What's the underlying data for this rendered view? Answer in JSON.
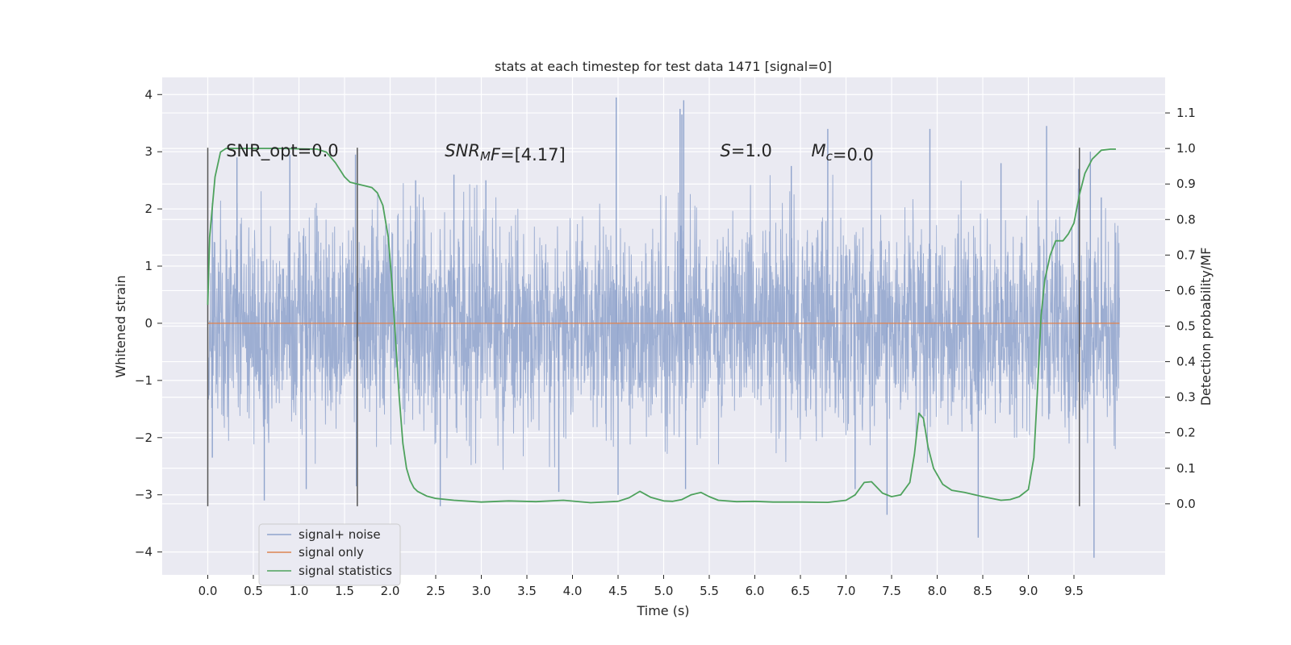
{
  "chart_data": {
    "type": "line",
    "title": "stats at each timestep for test data 1471 [signal=0]",
    "xlabel": "Time (s)",
    "ylabel": "Whitened strain",
    "y2label": "Detection probability/MF",
    "xlim": [
      -0.5,
      10.5
    ],
    "ylim": [
      -4.4,
      4.3
    ],
    "y2lim": [
      -0.2,
      1.2
    ],
    "xticks": [
      "0.0",
      "0.5",
      "1.0",
      "1.5",
      "2.0",
      "2.5",
      "3.0",
      "3.5",
      "4.0",
      "4.5",
      "5.0",
      "5.5",
      "6.0",
      "6.5",
      "7.0",
      "7.5",
      "8.0",
      "8.5",
      "9.0",
      "9.5"
    ],
    "yticks": [
      "4",
      "3",
      "2",
      "1",
      "0",
      "−1",
      "−2",
      "−3",
      "−4"
    ],
    "y2ticks": [
      "1.1",
      "1.0",
      "0.9",
      "0.8",
      "0.7",
      "0.6",
      "0.5",
      "0.4",
      "0.3",
      "0.2",
      "0.1",
      "0.0"
    ],
    "grid": true,
    "legend_position": "lower-left",
    "annotations": [
      {
        "parts": [
          {
            "text": "SNR_opt=0.0",
            "style": "normal"
          }
        ],
        "x": 0.2,
        "y": 3.0
      },
      {
        "parts": [
          {
            "text": "SNR",
            "style": "italic"
          },
          {
            "text": "M",
            "style": "italic-sub"
          },
          {
            "text": "F",
            "style": "italic"
          },
          {
            "text": "=[4.17]",
            "style": "normal"
          }
        ],
        "x": 2.6,
        "y": 3.0
      },
      {
        "parts": [
          {
            "text": "S",
            "style": "italic"
          },
          {
            "text": "=1.0",
            "style": "normal"
          }
        ],
        "x": 5.62,
        "y": 3.0
      },
      {
        "parts": [
          {
            "text": "M",
            "style": "italic"
          },
          {
            "text": "c",
            "style": "italic-sub"
          },
          {
            "text": "=0.0",
            "style": "normal"
          }
        ],
        "x": 6.62,
        "y": 3.0
      }
    ],
    "vlines": [
      0.0,
      1.64,
      9.56
    ],
    "vline_range": [
      -3.2,
      3.07
    ],
    "series": [
      {
        "name": "signal+ noise",
        "color": "#8fa3cc",
        "type": "noise",
        "x_range": [
          0.0,
          10.0
        ],
        "amplitude_y": 1.25,
        "spikes": [
          [
            0.05,
            2.1
          ],
          [
            0.05,
            -2.35
          ],
          [
            0.32,
            2.9
          ],
          [
            0.62,
            -3.1
          ],
          [
            0.9,
            2.95
          ],
          [
            1.08,
            -2.9
          ],
          [
            1.62,
            2.95
          ],
          [
            1.63,
            -2.85
          ],
          [
            2.28,
            2.5
          ],
          [
            2.55,
            -3.2
          ],
          [
            2.7,
            2.6
          ],
          [
            3.05,
            2.5
          ],
          [
            3.85,
            -2.95
          ],
          [
            4.48,
            3.95
          ],
          [
            4.5,
            -3.0
          ],
          [
            5.18,
            3.75
          ],
          [
            5.2,
            3.65
          ],
          [
            5.22,
            3.9
          ],
          [
            5.24,
            -2.9
          ],
          [
            6.4,
            2.75
          ],
          [
            6.8,
            3.4
          ],
          [
            7.1,
            -2.9
          ],
          [
            7.28,
            2.95
          ],
          [
            7.45,
            -3.35
          ],
          [
            7.92,
            3.4
          ],
          [
            8.45,
            -3.75
          ],
          [
            8.7,
            2.8
          ],
          [
            9.2,
            3.45
          ],
          [
            9.55,
            2.7
          ],
          [
            9.68,
            3.0
          ],
          [
            9.72,
            -4.1
          ],
          [
            9.8,
            2.2
          ]
        ]
      },
      {
        "name": "signal only",
        "color": "#dd8452",
        "type": "constant",
        "x_range": [
          0.0,
          10.0
        ],
        "y": 0.0
      },
      {
        "name": "signal statistics",
        "color": "#4ea25d",
        "axis": "right",
        "x": [
          0.0,
          0.02,
          0.08,
          0.14,
          0.2,
          0.3,
          0.5,
          0.8,
          1.0,
          1.2,
          1.3,
          1.4,
          1.5,
          1.56,
          1.64,
          1.72,
          1.8,
          1.86,
          1.92,
          1.98,
          2.02,
          2.06,
          2.1,
          2.14,
          2.18,
          2.22,
          2.26,
          2.3,
          2.4,
          2.5,
          2.7,
          3.0,
          3.3,
          3.6,
          3.9,
          4.2,
          4.5,
          4.62,
          4.74,
          4.86,
          5.0,
          5.1,
          5.2,
          5.3,
          5.41,
          5.5,
          5.6,
          5.8,
          6.0,
          6.2,
          6.5,
          6.8,
          7.0,
          7.1,
          7.2,
          7.28,
          7.4,
          7.5,
          7.6,
          7.7,
          7.75,
          7.8,
          7.85,
          7.9,
          7.96,
          8.06,
          8.16,
          8.3,
          8.5,
          8.7,
          8.8,
          8.9,
          9.0,
          9.06,
          9.1,
          9.14,
          9.18,
          9.24,
          9.3,
          9.38,
          9.44,
          9.5,
          9.56,
          9.62,
          9.7,
          9.8,
          9.9,
          9.96
        ],
        "values": [
          0.56,
          0.75,
          0.92,
          0.99,
          1.0,
          1.0,
          1.0,
          1.0,
          0.999,
          0.998,
          0.99,
          0.96,
          0.92,
          0.905,
          0.9,
          0.895,
          0.89,
          0.875,
          0.84,
          0.75,
          0.62,
          0.46,
          0.3,
          0.17,
          0.1,
          0.065,
          0.045,
          0.035,
          0.022,
          0.015,
          0.01,
          0.005,
          0.008,
          0.006,
          0.01,
          0.003,
          0.007,
          0.017,
          0.035,
          0.018,
          0.008,
          0.007,
          0.012,
          0.025,
          0.032,
          0.02,
          0.01,
          0.006,
          0.007,
          0.005,
          0.005,
          0.004,
          0.01,
          0.025,
          0.06,
          0.062,
          0.03,
          0.02,
          0.025,
          0.06,
          0.14,
          0.255,
          0.24,
          0.16,
          0.1,
          0.055,
          0.038,
          0.032,
          0.02,
          0.01,
          0.012,
          0.02,
          0.04,
          0.13,
          0.32,
          0.53,
          0.63,
          0.7,
          0.74,
          0.74,
          0.76,
          0.79,
          0.87,
          0.93,
          0.97,
          0.995,
          0.998,
          0.998
        ]
      }
    ]
  }
}
